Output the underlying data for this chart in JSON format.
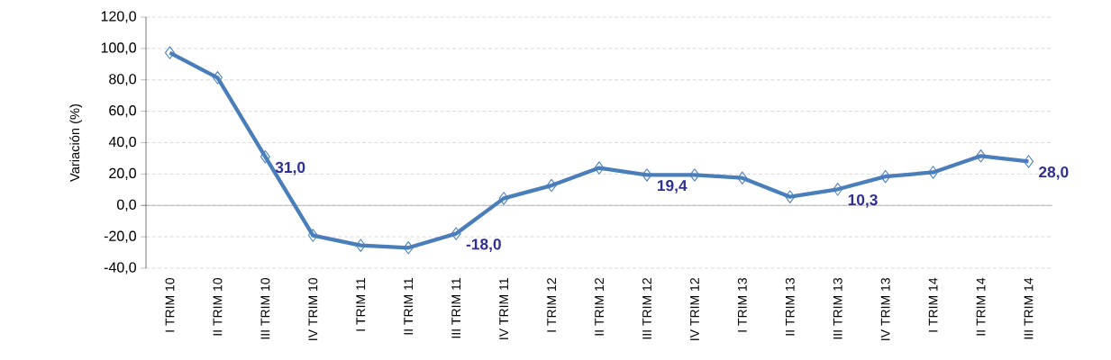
{
  "chart_data": {
    "type": "line",
    "ylabel": "Variación (%)",
    "categories": [
      "I TRIM 10",
      "II TRIM 10",
      "III TRIM 10",
      "IV TRIM 10",
      "I TRIM 11",
      "II TRIM 11",
      "III TRIM 11",
      "IV TRIM 11",
      "I TRIM 12",
      "II TRIM 12",
      "III TRIM 12",
      "IV TRIM 12",
      "I TRIM 13",
      "II TRIM 13",
      "III TRIM 13",
      "IV TRIM 13",
      "I TRIM 14",
      "II TRIM 14",
      "III TRIM 14"
    ],
    "series": [
      {
        "color": "#4a7ebb",
        "values": [
          97.3,
          81.4,
          31.0,
          -19.1,
          -25.5,
          -27.0,
          -18.0,
          4.5,
          12.7,
          23.9,
          19.4,
          19.4,
          17.5,
          5.5,
          10.3,
          18.4,
          21.1,
          31.5,
          28.0
        ],
        "value_labels": [
          null,
          null,
          "31,0",
          null,
          null,
          null,
          "-18,0",
          null,
          null,
          null,
          "19,4",
          null,
          null,
          null,
          "10,3",
          null,
          null,
          null,
          "28,0"
        ]
      }
    ],
    "ylim": [
      -40,
      120
    ],
    "yticks": [
      {
        "value": -40,
        "label": "-40,0"
      },
      {
        "value": -20,
        "label": "-20,0"
      },
      {
        "value": 0,
        "label": "0,0"
      },
      {
        "value": 20,
        "label": "20,0"
      },
      {
        "value": 40,
        "label": "40,0"
      },
      {
        "value": 60,
        "label": "60,0"
      },
      {
        "value": 80,
        "label": "80,0"
      },
      {
        "value": 100,
        "label": "100,0"
      },
      {
        "value": 120,
        "label": "120,0"
      }
    ],
    "grid": "y",
    "marker": "diamond",
    "line_style": "solid"
  }
}
